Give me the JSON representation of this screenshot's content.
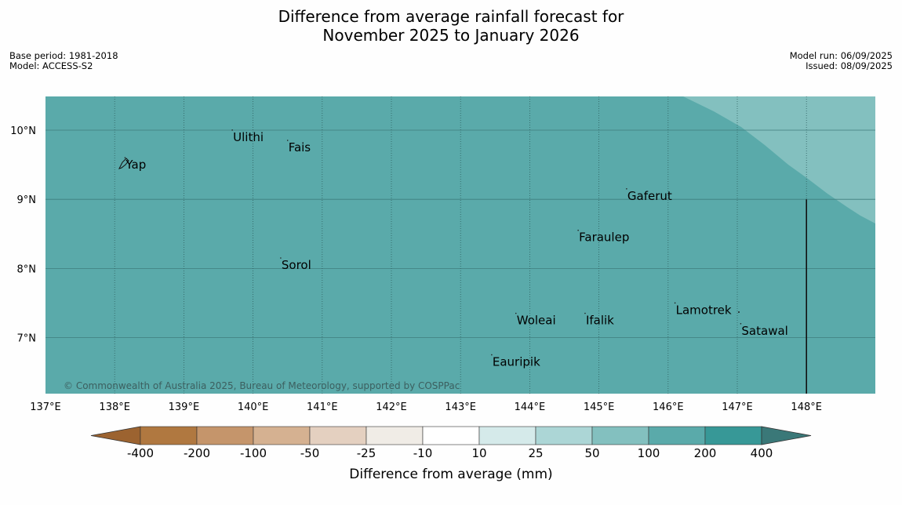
{
  "title": {
    "line1": "Difference from average rainfall forecast for",
    "line2": "November 2025 to January 2026"
  },
  "meta": {
    "base_period": "Base period: 1981-2018",
    "model": "Model: ACCESS-S2",
    "model_run": "Model run: 06/09/2025",
    "issued": "Issued: 08/09/2025"
  },
  "copyright": "© Commonwealth of Australia 2025, Bureau of Meteorology, supported by COSPPac",
  "map": {
    "lon_range": [
      137,
      149
    ],
    "lat_range": [
      6.2,
      10.5
    ],
    "lon_ticks": [
      "137°E",
      "138°E",
      "139°E",
      "140°E",
      "141°E",
      "142°E",
      "143°E",
      "144°E",
      "145°E",
      "146°E",
      "147°E",
      "148°E"
    ],
    "lat_ticks": [
      {
        "lat": 10,
        "label": "10°N"
      },
      {
        "lat": 9,
        "label": "9°N"
      },
      {
        "lat": 8,
        "label": "8°N"
      },
      {
        "lat": 7,
        "label": "7°N"
      }
    ],
    "background_color": "#5aaaaa",
    "lighter_region_color": "#83c0bf",
    "places": [
      {
        "name": "Ulithi",
        "lon": 139.7,
        "lat": 9.9
      },
      {
        "name": "Fais",
        "lon": 140.5,
        "lat": 9.75
      },
      {
        "name": "Yap",
        "lon": 138.15,
        "lat": 9.5
      },
      {
        "name": "Gaferut",
        "lon": 145.4,
        "lat": 9.05
      },
      {
        "name": "Faraulep",
        "lon": 144.7,
        "lat": 8.45
      },
      {
        "name": "Sorol",
        "lon": 140.4,
        "lat": 8.05
      },
      {
        "name": "Lamotrek",
        "lon": 146.1,
        "lat": 7.4
      },
      {
        "name": "Woleai",
        "lon": 143.8,
        "lat": 7.25
      },
      {
        "name": "Ifalik",
        "lon": 144.8,
        "lat": 7.25
      },
      {
        "name": "Satawal",
        "lon": 147.05,
        "lat": 7.1
      },
      {
        "name": "Eauripik",
        "lon": 143.45,
        "lat": 6.65
      }
    ]
  },
  "colorbar": {
    "title": "Difference from average (mm)",
    "labels": [
      "-400",
      "-200",
      "-100",
      "-50",
      "-25",
      "-10",
      "10",
      "25",
      "50",
      "100",
      "200",
      "400"
    ],
    "colors": [
      "#9c6330",
      "#b07840",
      "#c5956b",
      "#d5b191",
      "#e4d0c0",
      "#f0ece6",
      "#ffffff",
      "#d5eaea",
      "#acd6d6",
      "#83c0bf",
      "#5aaaaa",
      "#379897",
      "#3a7878"
    ]
  }
}
